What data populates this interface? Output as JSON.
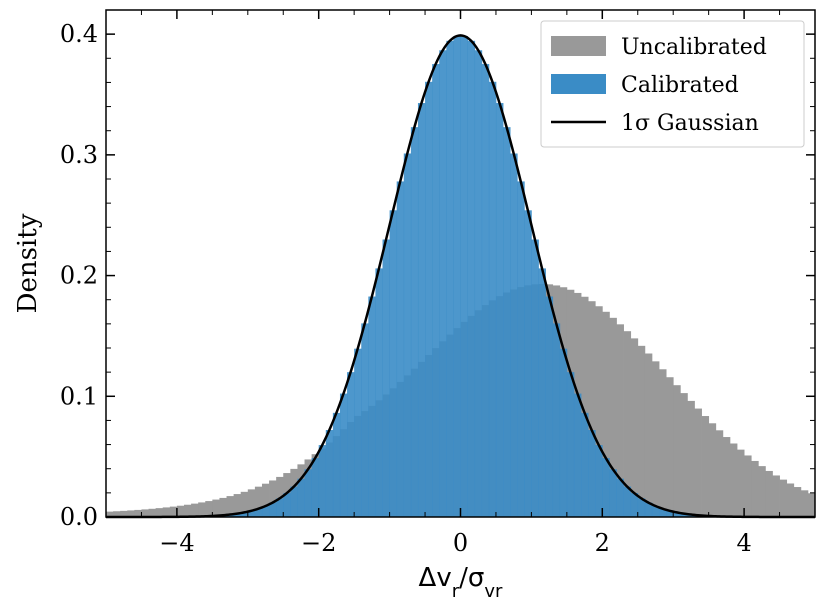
{
  "chart_data": {
    "type": "bar",
    "xlabel": "Δv_r/σ_vr",
    "ylabel": "Density",
    "xlim": [
      -5,
      5
    ],
    "ylim": [
      0,
      0.42
    ],
    "xticks": [
      -4,
      -2,
      0,
      2,
      4
    ],
    "xtick_labels": [
      "−4",
      "−2",
      "0",
      "2",
      "4"
    ],
    "yticks": [
      0.0,
      0.1,
      0.2,
      0.3,
      0.4
    ],
    "ytick_labels": [
      "0.0",
      "0.1",
      "0.2",
      "0.3",
      "0.4"
    ],
    "grid": false,
    "legend": {
      "position": "top-right",
      "entries": [
        {
          "label": "Uncalibrated",
          "kind": "patch",
          "color": "#999999"
        },
        {
          "label": "Calibrated",
          "kind": "patch",
          "color": "#3a8cc6"
        },
        {
          "label": "1σ Gaussian",
          "kind": "line",
          "color": "#000000"
        }
      ]
    },
    "bin_width": 0.1,
    "series": [
      {
        "name": "Uncalibrated",
        "kind": "histogram",
        "color": "#999999",
        "model": {
          "mean": 1.2,
          "sigma": 1.75,
          "tail_scale": 1.9,
          "tail_weight": 0.025,
          "tail_split": -1.5
        }
      },
      {
        "name": "Calibrated",
        "kind": "histogram",
        "color": "#3a8cc6",
        "model": {
          "mean": 0.0,
          "sigma": 1.0
        }
      },
      {
        "name": "1σ Gaussian",
        "kind": "line",
        "color": "#000000",
        "model": {
          "mean": 0.0,
          "sigma": 1.0
        }
      }
    ]
  }
}
